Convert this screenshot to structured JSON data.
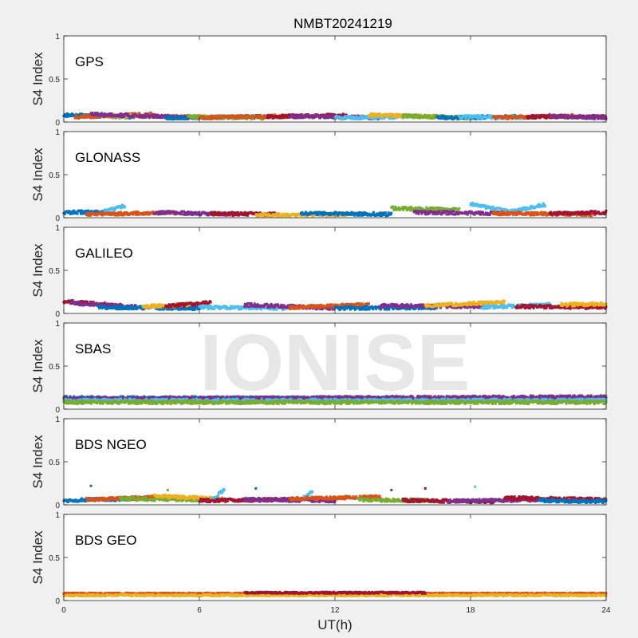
{
  "figure": {
    "title": "NMBT20241219",
    "watermark": "IONISE",
    "xlabel": "UT(h)",
    "ylabel": "S4 Index",
    "background": "#f0f0f0",
    "axes_color": "#262626",
    "watermark_color": "#e3e3e3"
  },
  "series_colors": [
    "#0072bd",
    "#d95319",
    "#edb120",
    "#7e2f8e",
    "#77ac30",
    "#4dbeee",
    "#a2142f"
  ],
  "chart_data": [
    {
      "type": "scatter",
      "label": "GPS",
      "xlim": [
        0,
        24
      ],
      "ylim": [
        0,
        1
      ],
      "xticks": [
        0,
        6,
        12,
        18,
        24
      ],
      "yticks": [
        0,
        0.5,
        1
      ],
      "ytick_labels": [
        "0",
        "0.5",
        "1"
      ],
      "grid": false,
      "baseline": 0.07,
      "spread": 0.02,
      "segments": [
        {
          "series": 0,
          "x": [
            0.0,
            3.2
          ],
          "y0": 0.08,
          "y1": 0.06
        },
        {
          "series": 1,
          "x": [
            0.5,
            4.0
          ],
          "y0": 0.06,
          "y1": 0.09
        },
        {
          "series": 2,
          "x": [
            2.0,
            5.5
          ],
          "y0": 0.07,
          "y1": 0.06
        },
        {
          "series": 3,
          "x": [
            1.2,
            6.0
          ],
          "y0": 0.09,
          "y1": 0.05
        },
        {
          "series": 0,
          "x": [
            4.5,
            9.0
          ],
          "y0": 0.05,
          "y1": 0.06
        },
        {
          "series": 4,
          "x": [
            5.5,
            8.8
          ],
          "y0": 0.06,
          "y1": 0.05
        },
        {
          "series": 1,
          "x": [
            6.0,
            10.5
          ],
          "y0": 0.05,
          "y1": 0.07
        },
        {
          "series": 6,
          "x": [
            9.0,
            12.5
          ],
          "y0": 0.06,
          "y1": 0.08
        },
        {
          "series": 3,
          "x": [
            10.0,
            14.0
          ],
          "y0": 0.07,
          "y1": 0.05
        },
        {
          "series": 5,
          "x": [
            12.0,
            15.5
          ],
          "y0": 0.05,
          "y1": 0.06
        },
        {
          "series": 2,
          "x": [
            13.5,
            17.0
          ],
          "y0": 0.08,
          "y1": 0.06
        },
        {
          "series": 4,
          "x": [
            15.0,
            18.0
          ],
          "y0": 0.07,
          "y1": 0.05
        },
        {
          "series": 0,
          "x": [
            16.5,
            20.0
          ],
          "y0": 0.05,
          "y1": 0.06
        },
        {
          "series": 5,
          "x": [
            17.5,
            20.5
          ],
          "y0": 0.06,
          "y1": 0.05
        },
        {
          "series": 1,
          "x": [
            19.0,
            22.5
          ],
          "y0": 0.05,
          "y1": 0.07
        },
        {
          "series": 6,
          "x": [
            20.5,
            24.0
          ],
          "y0": 0.06,
          "y1": 0.06
        },
        {
          "series": 3,
          "x": [
            21.5,
            24.0
          ],
          "y0": 0.07,
          "y1": 0.05
        }
      ]
    },
    {
      "type": "scatter",
      "label": "GLONASS",
      "xlim": [
        0,
        24
      ],
      "ylim": [
        0,
        1
      ],
      "xticks": [
        0,
        6,
        12,
        18,
        24
      ],
      "yticks": [
        0,
        0.5,
        1
      ],
      "ytick_labels": [
        "0",
        "0.5",
        "1"
      ],
      "grid": false,
      "baseline": 0.05,
      "spread": 0.02,
      "segments": [
        {
          "series": 0,
          "x": [
            0.0,
            2.0
          ],
          "y0": 0.06,
          "y1": 0.07
        },
        {
          "series": 5,
          "x": [
            1.8,
            2.7
          ],
          "y0": 0.07,
          "y1": 0.14
        },
        {
          "series": 1,
          "x": [
            1.0,
            5.0
          ],
          "y0": 0.04,
          "y1": 0.06
        },
        {
          "series": 3,
          "x": [
            4.0,
            7.5
          ],
          "y0": 0.06,
          "y1": 0.04
        },
        {
          "series": 6,
          "x": [
            6.5,
            9.5
          ],
          "y0": 0.05,
          "y1": 0.04
        },
        {
          "series": 2,
          "x": [
            8.5,
            12.5
          ],
          "y0": 0.03,
          "y1": 0.04
        },
        {
          "series": 0,
          "x": [
            10.5,
            14.5
          ],
          "y0": 0.05,
          "y1": 0.04
        },
        {
          "series": 4,
          "x": [
            14.5,
            17.5
          ],
          "y0": 0.11,
          "y1": 0.09
        },
        {
          "series": 3,
          "x": [
            15.5,
            19.5
          ],
          "y0": 0.06,
          "y1": 0.05
        },
        {
          "series": 5,
          "x": [
            18.0,
            19.7
          ],
          "y0": 0.16,
          "y1": 0.07
        },
        {
          "series": 5,
          "x": [
            19.7,
            21.3
          ],
          "y0": 0.07,
          "y1": 0.15
        },
        {
          "series": 1,
          "x": [
            19.0,
            23.5
          ],
          "y0": 0.05,
          "y1": 0.04
        },
        {
          "series": 6,
          "x": [
            21.5,
            24.0
          ],
          "y0": 0.05,
          "y1": 0.06
        }
      ]
    },
    {
      "type": "scatter",
      "label": "GALILEO",
      "xlim": [
        0,
        24
      ],
      "ylim": [
        0,
        1
      ],
      "xticks": [
        0,
        6,
        12,
        18,
        24
      ],
      "yticks": [
        0,
        0.5,
        1
      ],
      "ytick_labels": [
        "0",
        "0.5",
        "1"
      ],
      "grid": false,
      "baseline": 0.08,
      "spread": 0.02,
      "segments": [
        {
          "series": 6,
          "x": [
            0.0,
            2.5
          ],
          "y0": 0.14,
          "y1": 0.09
        },
        {
          "series": 3,
          "x": [
            0.3,
            3.5
          ],
          "y0": 0.12,
          "y1": 0.07
        },
        {
          "series": 0,
          "x": [
            1.5,
            6.0
          ],
          "y0": 0.07,
          "y1": 0.06
        },
        {
          "series": 2,
          "x": [
            3.5,
            5.5
          ],
          "y0": 0.08,
          "y1": 0.1
        },
        {
          "series": 6,
          "x": [
            4.5,
            6.5
          ],
          "y0": 0.08,
          "y1": 0.13
        },
        {
          "series": 5,
          "x": [
            6.0,
            10.0
          ],
          "y0": 0.07,
          "y1": 0.06
        },
        {
          "series": 3,
          "x": [
            8.0,
            12.0
          ],
          "y0": 0.1,
          "y1": 0.06
        },
        {
          "series": 1,
          "x": [
            10.0,
            13.5
          ],
          "y0": 0.07,
          "y1": 0.1
        },
        {
          "series": 0,
          "x": [
            12.0,
            16.5
          ],
          "y0": 0.06,
          "y1": 0.07
        },
        {
          "series": 3,
          "x": [
            14.0,
            18.5
          ],
          "y0": 0.09,
          "y1": 0.08
        },
        {
          "series": 2,
          "x": [
            16.0,
            19.5
          ],
          "y0": 0.09,
          "y1": 0.13
        },
        {
          "series": 5,
          "x": [
            18.5,
            21.5
          ],
          "y0": 0.07,
          "y1": 0.1
        },
        {
          "series": 6,
          "x": [
            20.0,
            24.0
          ],
          "y0": 0.08,
          "y1": 0.07
        },
        {
          "series": 2,
          "x": [
            22.0,
            24.0
          ],
          "y0": 0.1,
          "y1": 0.11
        }
      ]
    },
    {
      "type": "scatter",
      "label": "SBAS",
      "xlim": [
        0,
        24
      ],
      "ylim": [
        0,
        1
      ],
      "xticks": [
        0,
        6,
        12,
        18,
        24
      ],
      "yticks": [
        0,
        0.5,
        1
      ],
      "ytick_labels": [
        "0",
        "0.5",
        "1"
      ],
      "grid": false,
      "baseline": 0.12,
      "spread": 0.02,
      "segments": [
        {
          "series": 0,
          "x": [
            0.0,
            24.0
          ],
          "y0": 0.13,
          "y1": 0.12
        },
        {
          "series": 3,
          "x": [
            0.0,
            24.0
          ],
          "y0": 0.12,
          "y1": 0.14
        },
        {
          "series": 5,
          "x": [
            0.0,
            24.0
          ],
          "y0": 0.1,
          "y1": 0.1
        },
        {
          "series": 4,
          "x": [
            0.0,
            24.0
          ],
          "y0": 0.08,
          "y1": 0.08
        }
      ]
    },
    {
      "type": "scatter",
      "label": "BDS NGEO",
      "xlim": [
        0,
        24
      ],
      "ylim": [
        0,
        1
      ],
      "xticks": [
        0,
        6,
        12,
        18,
        24
      ],
      "yticks": [
        0,
        0.5,
        1
      ],
      "ytick_labels": [
        "0",
        "0.5",
        "1"
      ],
      "grid": false,
      "baseline": 0.05,
      "spread": 0.02,
      "segments": [
        {
          "series": 0,
          "x": [
            0.0,
            3.0
          ],
          "y0": 0.05,
          "y1": 0.07
        },
        {
          "series": 1,
          "x": [
            1.0,
            4.5
          ],
          "y0": 0.06,
          "y1": 0.09
        },
        {
          "series": 4,
          "x": [
            2.5,
            6.5
          ],
          "y0": 0.07,
          "y1": 0.06
        },
        {
          "series": 2,
          "x": [
            4.0,
            7.0
          ],
          "y0": 0.1,
          "y1": 0.07
        },
        {
          "series": 5,
          "x": [
            6.5,
            7.1
          ],
          "y0": 0.04,
          "y1": 0.18
        },
        {
          "series": 6,
          "x": [
            6.0,
            10.0
          ],
          "y0": 0.05,
          "y1": 0.06
        },
        {
          "series": 3,
          "x": [
            8.0,
            12.0
          ],
          "y0": 0.06,
          "y1": 0.05
        },
        {
          "series": 5,
          "x": [
            10.5,
            11.0
          ],
          "y0": 0.06,
          "y1": 0.15
        },
        {
          "series": 1,
          "x": [
            10.0,
            14.0
          ],
          "y0": 0.07,
          "y1": 0.09
        },
        {
          "series": 4,
          "x": [
            13.0,
            16.5
          ],
          "y0": 0.06,
          "y1": 0.05
        },
        {
          "series": 6,
          "x": [
            15.0,
            19.0
          ],
          "y0": 0.05,
          "y1": 0.04
        },
        {
          "series": 3,
          "x": [
            17.0,
            21.0
          ],
          "y0": 0.04,
          "y1": 0.06
        },
        {
          "series": 6,
          "x": [
            19.5,
            24.0
          ],
          "y0": 0.08,
          "y1": 0.06
        },
        {
          "series": 0,
          "x": [
            21.0,
            24.0
          ],
          "y0": 0.05,
          "y1": 0.04
        }
      ],
      "points": [
        {
          "series": 0,
          "x": 1.2,
          "y": 0.22
        },
        {
          "series": 4,
          "x": 4.6,
          "y": 0.17
        },
        {
          "series": 0,
          "x": 8.5,
          "y": 0.19
        },
        {
          "series": 3,
          "x": 14.5,
          "y": 0.17
        },
        {
          "series": 6,
          "x": 16.0,
          "y": 0.19
        },
        {
          "series": 5,
          "x": 18.2,
          "y": 0.21
        }
      ]
    },
    {
      "type": "scatter",
      "label": "BDS GEO",
      "xlim": [
        0,
        24
      ],
      "ylim": [
        0,
        1
      ],
      "xticks": [
        0,
        6,
        12,
        18,
        24
      ],
      "yticks": [
        0,
        0.5,
        1
      ],
      "ytick_labels": [
        "0",
        "0.5",
        "1"
      ],
      "xtick_labels": [
        "0",
        "6",
        "12",
        "18",
        "24"
      ],
      "grid": false,
      "baseline": 0.07,
      "spread": 0.01,
      "segments": [
        {
          "series": 1,
          "x": [
            0.0,
            24.0
          ],
          "y0": 0.08,
          "y1": 0.08
        },
        {
          "series": 2,
          "x": [
            0.0,
            24.0
          ],
          "y0": 0.06,
          "y1": 0.06
        },
        {
          "series": 6,
          "x": [
            8.0,
            16.0
          ],
          "y0": 0.09,
          "y1": 0.09
        }
      ]
    }
  ]
}
